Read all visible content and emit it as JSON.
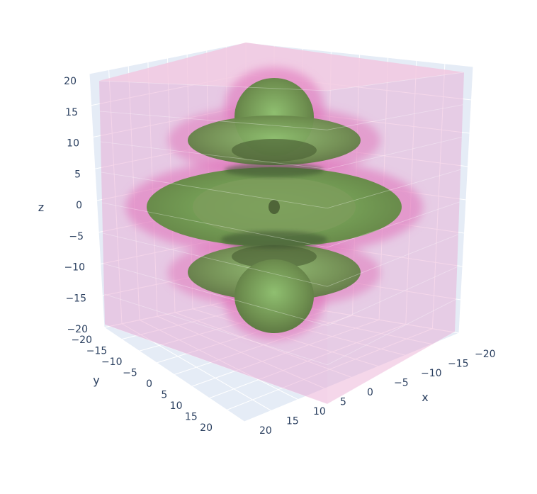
{
  "chart_data": {
    "type": "isosurface",
    "title": "",
    "axes": {
      "x": {
        "label": "x",
        "range": [
          -20,
          20
        ],
        "ticks": [
          -20,
          -15,
          -10,
          -5,
          0,
          5,
          10,
          15,
          20
        ]
      },
      "y": {
        "label": "y",
        "range": [
          -20,
          20
        ],
        "ticks": [
          -20,
          -15,
          -10,
          -5,
          0,
          5,
          10,
          15,
          20
        ]
      },
      "z": {
        "label": "z",
        "range": [
          -20,
          20
        ],
        "ticks": [
          -20,
          -15,
          -10,
          -5,
          0,
          5,
          10,
          15,
          20
        ]
      }
    },
    "grid": true,
    "colors": {
      "outer_shell": "#e58fc6",
      "inner_surface": "#6e8f4e",
      "inner_highlight": "#86b86a",
      "grid_line": "#ffffff",
      "wall": "#e5ecf6",
      "tick_text": "#2a3f5f"
    }
  }
}
